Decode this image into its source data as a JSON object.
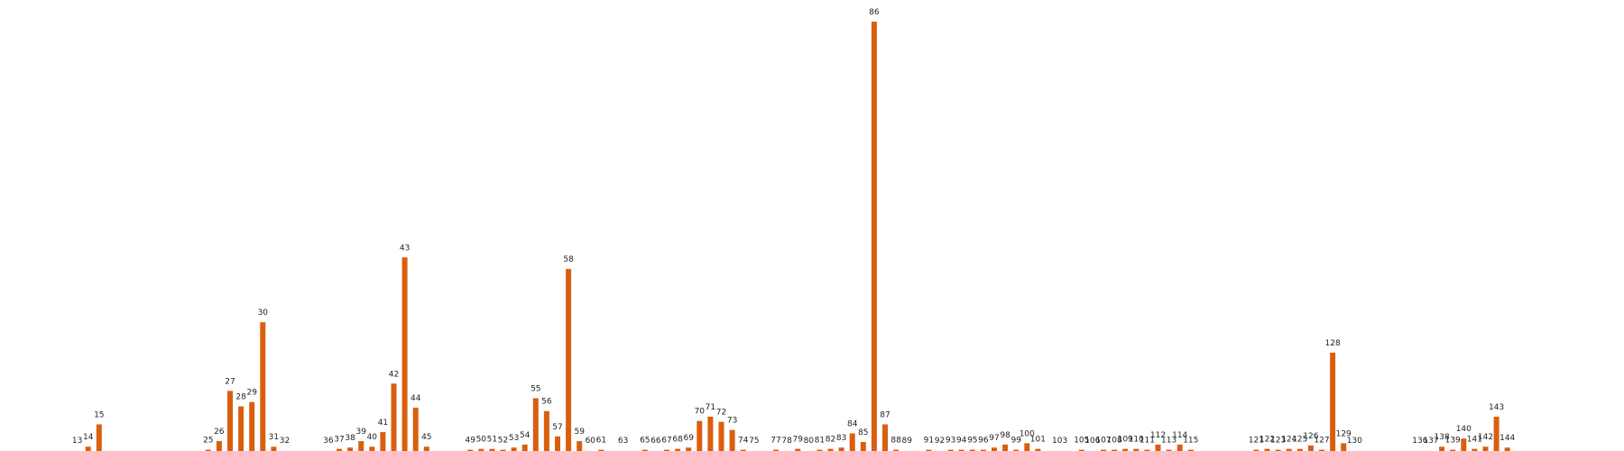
{
  "chart_data": {
    "type": "bar",
    "title": "",
    "xlabel": "",
    "ylabel": "",
    "bar_color": "#d95f0e",
    "background": "#ffffff",
    "grid": false,
    "axes_visible": false,
    "xlim": [
      0,
      145
    ],
    "ylim": [
      0,
      1
    ],
    "bars": [
      {
        "x": 13,
        "label": "13",
        "value": 0.0
      },
      {
        "x": 14,
        "label": "14",
        "value": 0.01
      },
      {
        "x": 15,
        "label": "15",
        "value": 0.062
      },
      {
        "x": 25,
        "label": "25",
        "value": 0.003
      },
      {
        "x": 26,
        "label": "26",
        "value": 0.023
      },
      {
        "x": 27,
        "label": "27",
        "value": 0.14
      },
      {
        "x": 28,
        "label": "28",
        "value": 0.104
      },
      {
        "x": 29,
        "label": "29",
        "value": 0.114
      },
      {
        "x": 30,
        "label": "30",
        "value": 0.3
      },
      {
        "x": 31,
        "label": "31",
        "value": 0.01
      },
      {
        "x": 32,
        "label": "32",
        "value": 0.0
      },
      {
        "x": 36,
        "label": "36",
        "value": 0.0
      },
      {
        "x": 37,
        "label": "37",
        "value": 0.005
      },
      {
        "x": 38,
        "label": "38",
        "value": 0.008
      },
      {
        "x": 39,
        "label": "39",
        "value": 0.023
      },
      {
        "x": 40,
        "label": "40",
        "value": 0.01
      },
      {
        "x": 41,
        "label": "41",
        "value": 0.044
      },
      {
        "x": 42,
        "label": "42",
        "value": 0.157
      },
      {
        "x": 43,
        "label": "43",
        "value": 0.451
      },
      {
        "x": 44,
        "label": "44",
        "value": 0.101
      },
      {
        "x": 45,
        "label": "45",
        "value": 0.01
      },
      {
        "x": 49,
        "label": "49",
        "value": 0.003
      },
      {
        "x": 50,
        "label": "50",
        "value": 0.005
      },
      {
        "x": 51,
        "label": "51",
        "value": 0.005
      },
      {
        "x": 52,
        "label": "52",
        "value": 0.003
      },
      {
        "x": 53,
        "label": "53",
        "value": 0.008
      },
      {
        "x": 54,
        "label": "54",
        "value": 0.015
      },
      {
        "x": 55,
        "label": "55",
        "value": 0.123
      },
      {
        "x": 56,
        "label": "56",
        "value": 0.093
      },
      {
        "x": 57,
        "label": "57",
        "value": 0.034
      },
      {
        "x": 58,
        "label": "58",
        "value": 0.424
      },
      {
        "x": 59,
        "label": "59",
        "value": 0.023
      },
      {
        "x": 60,
        "label": "60",
        "value": 0.0
      },
      {
        "x": 61,
        "label": "61",
        "value": 0.003
      },
      {
        "x": 63,
        "label": "63",
        "value": 0.0
      },
      {
        "x": 65,
        "label": "65",
        "value": 0.003
      },
      {
        "x": 66,
        "label": "66",
        "value": 0.0
      },
      {
        "x": 67,
        "label": "67",
        "value": 0.003
      },
      {
        "x": 68,
        "label": "68",
        "value": 0.005
      },
      {
        "x": 69,
        "label": "69",
        "value": 0.008
      },
      {
        "x": 70,
        "label": "70",
        "value": 0.07
      },
      {
        "x": 71,
        "label": "71",
        "value": 0.08
      },
      {
        "x": 72,
        "label": "72",
        "value": 0.068
      },
      {
        "x": 73,
        "label": "73",
        "value": 0.049
      },
      {
        "x": 74,
        "label": "74",
        "value": 0.003
      },
      {
        "x": 75,
        "label": "75",
        "value": 0.0
      },
      {
        "x": 77,
        "label": "77",
        "value": 0.003
      },
      {
        "x": 78,
        "label": "78",
        "value": 0.0
      },
      {
        "x": 79,
        "label": "79",
        "value": 0.005
      },
      {
        "x": 80,
        "label": "80",
        "value": 0.0
      },
      {
        "x": 81,
        "label": "81",
        "value": 0.003
      },
      {
        "x": 82,
        "label": "82",
        "value": 0.005
      },
      {
        "x": 83,
        "label": "83",
        "value": 0.008
      },
      {
        "x": 84,
        "label": "84",
        "value": 0.041
      },
      {
        "x": 85,
        "label": "85",
        "value": 0.021
      },
      {
        "x": 86,
        "label": "86",
        "value": 1.0
      },
      {
        "x": 87,
        "label": "87",
        "value": 0.062
      },
      {
        "x": 88,
        "label": "88",
        "value": 0.003
      },
      {
        "x": 89,
        "label": "89",
        "value": 0.0
      },
      {
        "x": 91,
        "label": "91",
        "value": 0.003
      },
      {
        "x": 92,
        "label": "92",
        "value": 0.0
      },
      {
        "x": 93,
        "label": "93",
        "value": 0.003
      },
      {
        "x": 94,
        "label": "94",
        "value": 0.003
      },
      {
        "x": 95,
        "label": "95",
        "value": 0.003
      },
      {
        "x": 96,
        "label": "96",
        "value": 0.003
      },
      {
        "x": 97,
        "label": "97",
        "value": 0.008
      },
      {
        "x": 98,
        "label": "98",
        "value": 0.015
      },
      {
        "x": 99,
        "label": "99",
        "value": 0.003
      },
      {
        "x": 100,
        "label": "100",
        "value": 0.018
      },
      {
        "x": 101,
        "label": "101",
        "value": 0.005
      },
      {
        "x": 103,
        "label": "103",
        "value": 0.0
      },
      {
        "x": 105,
        "label": "105",
        "value": 0.003
      },
      {
        "x": 106,
        "label": "106",
        "value": 0.0
      },
      {
        "x": 107,
        "label": "107",
        "value": 0.003
      },
      {
        "x": 108,
        "label": "108",
        "value": 0.003
      },
      {
        "x": 109,
        "label": "109",
        "value": 0.005
      },
      {
        "x": 110,
        "label": "110",
        "value": 0.005
      },
      {
        "x": 111,
        "label": "111",
        "value": 0.003
      },
      {
        "x": 112,
        "label": "112",
        "value": 0.015
      },
      {
        "x": 113,
        "label": "113",
        "value": 0.003
      },
      {
        "x": 114,
        "label": "114",
        "value": 0.015
      },
      {
        "x": 115,
        "label": "115",
        "value": 0.003
      },
      {
        "x": 121,
        "label": "121",
        "value": 0.003
      },
      {
        "x": 122,
        "label": "122",
        "value": 0.005
      },
      {
        "x": 123,
        "label": "123",
        "value": 0.003
      },
      {
        "x": 124,
        "label": "124",
        "value": 0.005
      },
      {
        "x": 125,
        "label": "125",
        "value": 0.005
      },
      {
        "x": 126,
        "label": "126",
        "value": 0.013
      },
      {
        "x": 127,
        "label": "127",
        "value": 0.003
      },
      {
        "x": 128,
        "label": "128",
        "value": 0.229
      },
      {
        "x": 129,
        "label": "129",
        "value": 0.018
      },
      {
        "x": 130,
        "label": "130",
        "value": 0.0
      },
      {
        "x": 136,
        "label": "136",
        "value": 0.0
      },
      {
        "x": 137,
        "label": "137",
        "value": 0.0
      },
      {
        "x": 138,
        "label": "138",
        "value": 0.01
      },
      {
        "x": 139,
        "label": "139",
        "value": 0.003
      },
      {
        "x": 140,
        "label": "140",
        "value": 0.029
      },
      {
        "x": 141,
        "label": "141",
        "value": 0.005
      },
      {
        "x": 142,
        "label": "142",
        "value": 0.01
      },
      {
        "x": 143,
        "label": "143",
        "value": 0.08
      },
      {
        "x": 144,
        "label": "144",
        "value": 0.008
      }
    ]
  }
}
